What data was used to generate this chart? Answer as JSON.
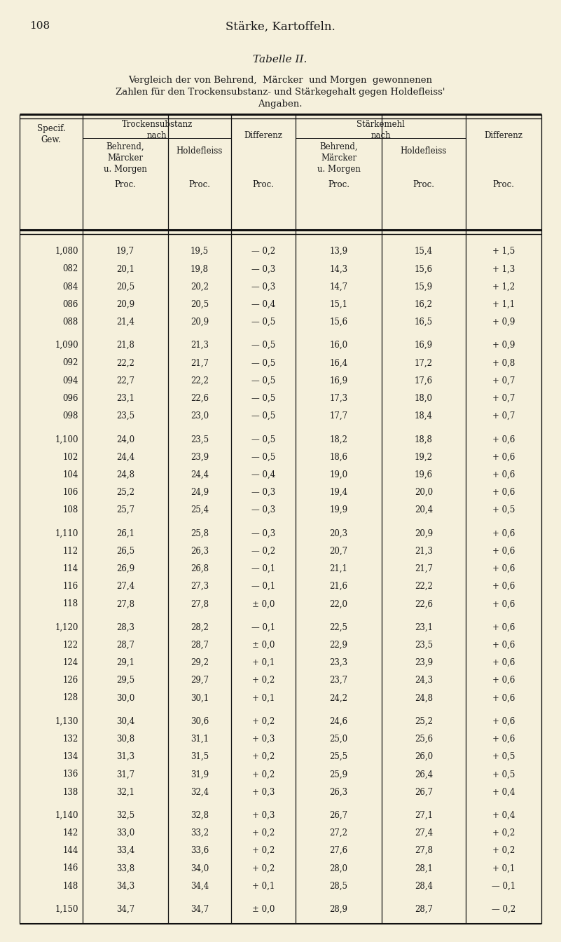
{
  "page_number": "108",
  "page_title": "Stärke, Kartoffeln.",
  "table_title": "Tabelle II.",
  "subtitle_line1": "Vergleich der von Behrend,  Märcker  und Morgen  gewonnenen",
  "subtitle_line2": "Zahlen für den Trockensubstanz- und Stärkegehalt gegen Holdefleiss'",
  "subtitle_line3": "Angaben.",
  "rows": [
    [
      "1,080",
      "19,7",
      "19,5",
      "— 0,2",
      "13,9",
      "15,4",
      "+ 1,5"
    ],
    [
      "082",
      "20,1",
      "19,8",
      "— 0,3",
      "14,3",
      "15,6",
      "+ 1,3"
    ],
    [
      "084",
      "20,5",
      "20,2",
      "— 0,3",
      "14,7",
      "15,9",
      "+ 1,2"
    ],
    [
      "086",
      "20,9",
      "20,5",
      "— 0,4",
      "15,1",
      "16,2",
      "+ 1,1"
    ],
    [
      "088",
      "21,4",
      "20,9",
      "— 0,5",
      "15,6",
      "16,5",
      "+ 0,9"
    ],
    [
      "1,090",
      "21,8",
      "21,3",
      "— 0,5",
      "16,0",
      "16,9",
      "+ 0,9"
    ],
    [
      "092",
      "22,2",
      "21,7",
      "— 0,5",
      "16,4",
      "17,2",
      "+ 0,8"
    ],
    [
      "094",
      "22,7",
      "22,2",
      "— 0,5",
      "16,9",
      "17,6",
      "+ 0,7"
    ],
    [
      "096",
      "23,1",
      "22,6",
      "— 0,5",
      "17,3",
      "18,0",
      "+ 0,7"
    ],
    [
      "098",
      "23,5",
      "23,0",
      "— 0,5",
      "17,7",
      "18,4",
      "+ 0,7"
    ],
    [
      "1,100",
      "24,0",
      "23,5",
      "— 0,5",
      "18,2",
      "18,8",
      "+ 0,6"
    ],
    [
      "102",
      "24,4",
      "23,9",
      "— 0,5",
      "18,6",
      "19,2",
      "+ 0,6"
    ],
    [
      "104",
      "24,8",
      "24,4",
      "— 0,4",
      "19,0",
      "19,6",
      "+ 0,6"
    ],
    [
      "106",
      "25,2",
      "24,9",
      "— 0,3",
      "19,4",
      "20,0",
      "+ 0,6"
    ],
    [
      "108",
      "25,7",
      "25,4",
      "— 0,3",
      "19,9",
      "20,4",
      "+ 0,5"
    ],
    [
      "1,110",
      "26,1",
      "25,8",
      "— 0,3",
      "20,3",
      "20,9",
      "+ 0,6"
    ],
    [
      "112",
      "26,5",
      "26,3",
      "— 0,2",
      "20,7",
      "21,3",
      "+ 0,6"
    ],
    [
      "114",
      "26,9",
      "26,8",
      "— 0,1",
      "21,1",
      "21,7",
      "+ 0,6"
    ],
    [
      "116",
      "27,4",
      "27,3",
      "— 0,1",
      "21,6",
      "22,2",
      "+ 0,6"
    ],
    [
      "118",
      "27,8",
      "27,8",
      "± 0,0",
      "22,0",
      "22,6",
      "+ 0,6"
    ],
    [
      "1,120",
      "28,3",
      "28,2",
      "— 0,1",
      "22,5",
      "23,1",
      "+ 0,6"
    ],
    [
      "122",
      "28,7",
      "28,7",
      "± 0,0",
      "22,9",
      "23,5",
      "+ 0,6"
    ],
    [
      "124",
      "29,1",
      "29,2",
      "+ 0,1",
      "23,3",
      "23,9",
      "+ 0,6"
    ],
    [
      "126",
      "29,5",
      "29,7",
      "+ 0,2",
      "23,7",
      "24,3",
      "+ 0,6"
    ],
    [
      "128",
      "30,0",
      "30,1",
      "+ 0,1",
      "24,2",
      "24,8",
      "+ 0,6"
    ],
    [
      "1,130",
      "30,4",
      "30,6",
      "+ 0,2",
      "24,6",
      "25,2",
      "+ 0,6"
    ],
    [
      "132",
      "30,8",
      "31,1",
      "+ 0,3",
      "25,0",
      "25,6",
      "+ 0,6"
    ],
    [
      "134",
      "31,3",
      "31,5",
      "+ 0,2",
      "25,5",
      "26,0",
      "+ 0,5"
    ],
    [
      "136",
      "31,7",
      "31,9",
      "+ 0,2",
      "25,9",
      "26,4",
      "+ 0,5"
    ],
    [
      "138",
      "32,1",
      "32,4",
      "+ 0,3",
      "26,3",
      "26,7",
      "+ 0,4"
    ],
    [
      "1,140",
      "32,5",
      "32,8",
      "+ 0,3",
      "26,7",
      "27,1",
      "+ 0,4"
    ],
    [
      "142",
      "33,0",
      "33,2",
      "+ 0,2",
      "27,2",
      "27,4",
      "+ 0,2"
    ],
    [
      "144",
      "33,4",
      "33,6",
      "+ 0,2",
      "27,6",
      "27,8",
      "+ 0,2"
    ],
    [
      "146",
      "33,8",
      "34,0",
      "+ 0,2",
      "28,0",
      "28,1",
      "+ 0,1"
    ],
    [
      "148",
      "34,3",
      "34,4",
      "+ 0,1",
      "28,5",
      "28,4",
      "— 0,1"
    ],
    [
      "1,150",
      "34,7",
      "34,7",
      "± 0,0",
      "28,9",
      "28,7",
      "— 0,2"
    ]
  ],
  "background_color": "#f5f0dc",
  "text_color": "#1a1a1a",
  "line_color": "#111111"
}
